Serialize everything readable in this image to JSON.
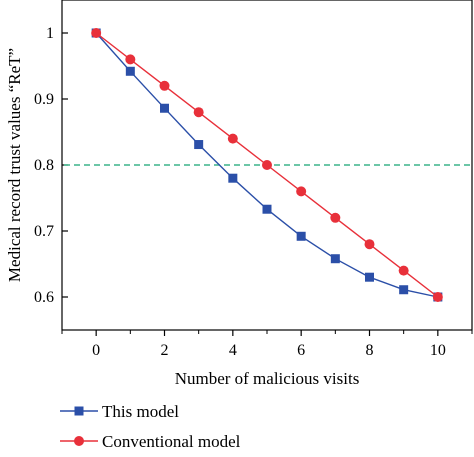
{
  "chart_data": {
    "type": "line",
    "xlabel": "Number of malicious visits",
    "ylabel": "Medical record trust values “ReT”",
    "xlim": [
      -1,
      11
    ],
    "ylim": [
      0.55,
      1.05
    ],
    "xticks": [
      0,
      2,
      4,
      6,
      8,
      10
    ],
    "xtick_labels": [
      "0",
      "2",
      "4",
      "6",
      "8",
      "10"
    ],
    "yticks": [
      0.6,
      0.7,
      0.8,
      0.9,
      1.0
    ],
    "ytick_labels": [
      "0.6",
      "0.7",
      "0.8",
      "0.9",
      "1"
    ],
    "x": [
      0,
      1,
      2,
      3,
      4,
      5,
      6,
      7,
      8,
      9,
      10
    ],
    "series": [
      {
        "name": "This model",
        "color": "#2b4fa8",
        "marker": "square",
        "values": [
          1.0,
          0.942,
          0.886,
          0.831,
          0.78,
          0.733,
          0.692,
          0.658,
          0.63,
          0.611,
          0.6
        ]
      },
      {
        "name": "Conventional model",
        "color": "#e8303a",
        "marker": "circle",
        "values": [
          1.0,
          0.96,
          0.92,
          0.88,
          0.84,
          0.8,
          0.76,
          0.72,
          0.68,
          0.64,
          0.6
        ]
      }
    ],
    "reference_line": {
      "y": 0.8,
      "style": "dashed",
      "color": "#3cb38a"
    },
    "grid": false,
    "legend_position": "bottom-left, below plot"
  }
}
